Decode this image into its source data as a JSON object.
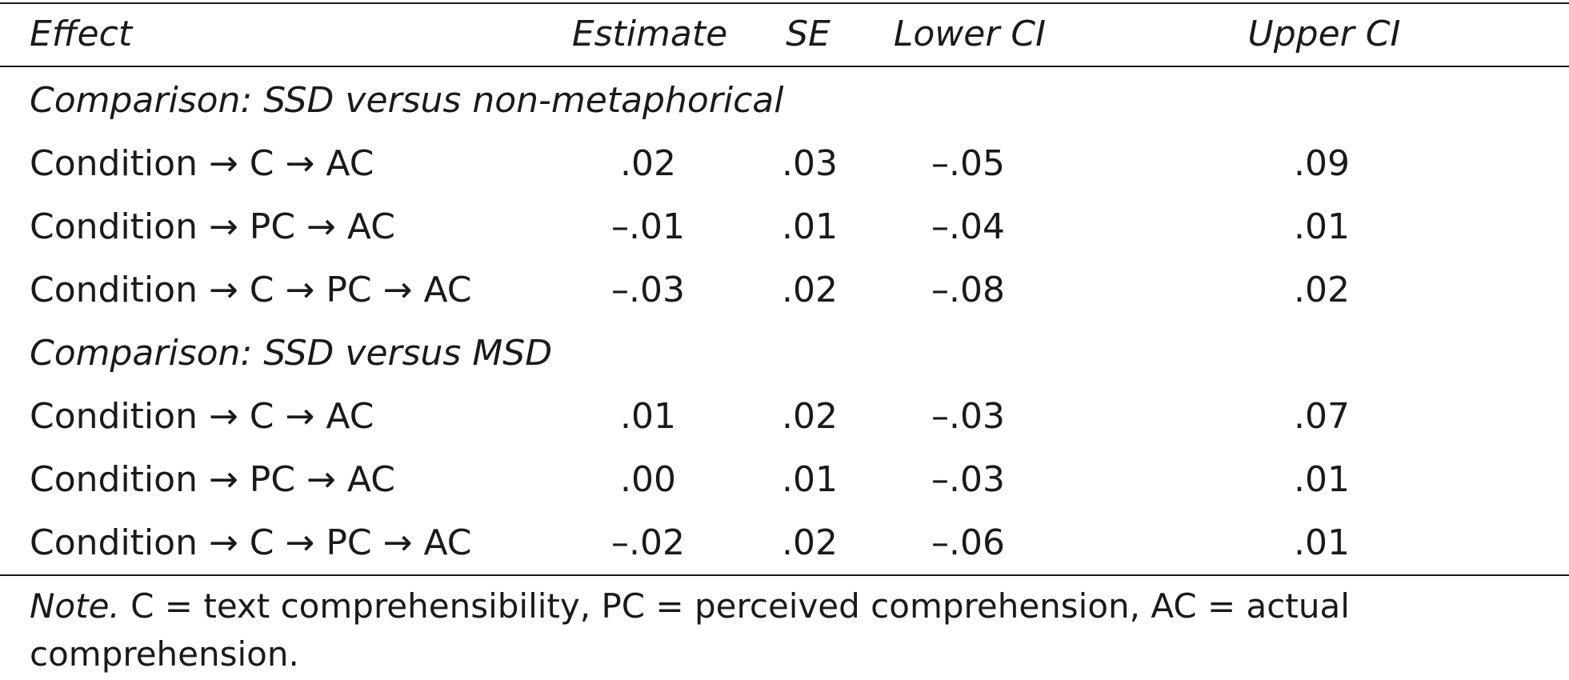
{
  "table": {
    "headers": {
      "effect": "Effect",
      "estimate": "Estimate",
      "se": "SE",
      "lower_ci": "Lower CI",
      "upper_ci": "Upper CI"
    },
    "sections": [
      {
        "title": "Comparison: SSD versus non-metaphorical",
        "rows": [
          {
            "effect": "Condition → C → AC",
            "estimate": ".02",
            "se": ".03",
            "lower_ci": "–.05",
            "upper_ci": ".09"
          },
          {
            "effect": "Condition → PC → AC",
            "estimate": "–.01",
            "se": ".01",
            "lower_ci": "–.04",
            "upper_ci": ".01"
          },
          {
            "effect": "Condition → C → PC → AC",
            "estimate": "–.03",
            "se": ".02",
            "lower_ci": "–.08",
            "upper_ci": ".02"
          }
        ]
      },
      {
        "title": "Comparison: SSD versus MSD",
        "rows": [
          {
            "effect": "Condition → C → AC",
            "estimate": ".01",
            "se": ".02",
            "lower_ci": "–.03",
            "upper_ci": ".07"
          },
          {
            "effect": "Condition → PC → AC",
            "estimate": ".00",
            "se": ".01",
            "lower_ci": "–.03",
            "upper_ci": ".01"
          },
          {
            "effect": "Condition → C → PC → AC",
            "estimate": "–.02",
            "se": ".02",
            "lower_ci": "–.06",
            "upper_ci": ".01"
          }
        ]
      }
    ]
  },
  "note": {
    "label": "Note.",
    "text": " C = text comprehensibility, PC = perceived comprehension, AC = actual comprehension."
  }
}
